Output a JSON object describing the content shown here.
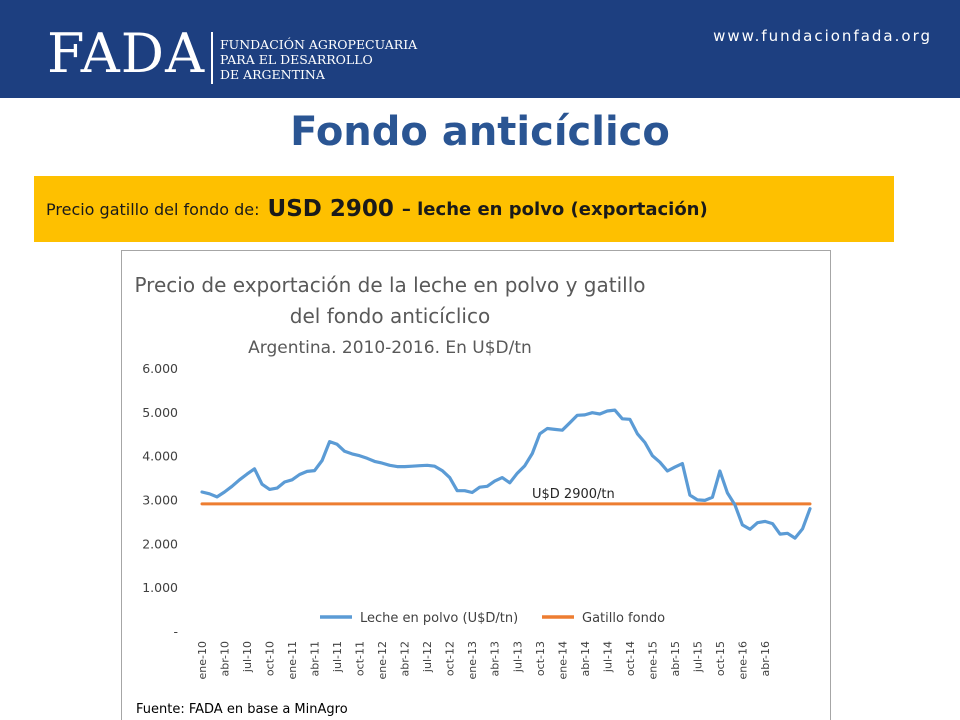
{
  "header": {
    "logo": "FADA",
    "org_lines": [
      "FUNDACIÓN AGROPECUARIA",
      "PARA EL DESARROLLO",
      "DE ARGENTINA"
    ],
    "url": "www.fundacionfada.org"
  },
  "page_title": "Fondo anticíclico",
  "banner": {
    "prefix": "Precio gatillo del fondo de:",
    "price": "USD 2900",
    "suffix": "– leche en polvo (exportación)"
  },
  "colors": {
    "header_bg": "#1d3f80",
    "banner_bg": "#fec000",
    "series_milk": "#5b9bd5",
    "series_trigger": "#ed7d31",
    "title": "#2a5593"
  },
  "chart_data": {
    "type": "line",
    "title_lines": [
      "Precio de exportación de la leche en polvo y gatillo",
      "del fondo anticíclico"
    ],
    "subtitle": "Argentina. 2010-2016. En U$D/tn",
    "ylim": [
      0,
      6000
    ],
    "y_ticks": [
      0,
      1000,
      2000,
      3000,
      4000,
      5000,
      6000
    ],
    "y_tick_labels": [
      "-",
      "1.000",
      "2.000",
      "3.000",
      "4.000",
      "5.000",
      "6.000"
    ],
    "x_tick_labels": [
      "ene-10",
      "abr-10",
      "jul-10",
      "oct-10",
      "ene-11",
      "abr-11",
      "jul-11",
      "oct-11",
      "ene-12",
      "abr-12",
      "jul-12",
      "oct-12",
      "ene-13",
      "abr-13",
      "jul-13",
      "oct-13",
      "ene-14",
      "abr-14",
      "jul-14",
      "oct-14",
      "ene-15",
      "abr-15",
      "jul-15",
      "oct-15",
      "ene-16",
      "abr-16"
    ],
    "grid": false,
    "legend_position": "bottom",
    "annotation": "U$D 2900/tn",
    "source": "Fuente: FADA en base a MinAgro",
    "series": [
      {
        "name": "Leche en polvo (U$D/tn)",
        "color": "#5b9bd5",
        "values": [
          3170,
          3130,
          3060,
          3170,
          3300,
          3450,
          3580,
          3700,
          3350,
          3230,
          3260,
          3400,
          3450,
          3570,
          3640,
          3660,
          3890,
          4320,
          4260,
          4100,
          4040,
          4000,
          3940,
          3870,
          3830,
          3780,
          3750,
          3750,
          3760,
          3770,
          3780,
          3760,
          3660,
          3500,
          3200,
          3200,
          3160,
          3280,
          3300,
          3420,
          3500,
          3380,
          3600,
          3770,
          4050,
          4500,
          4620,
          4600,
          4580,
          4750,
          4920,
          4930,
          4980,
          4950,
          5020,
          5040,
          4840,
          4830,
          4500,
          4300,
          4000,
          3850,
          3650,
          3740,
          3820,
          3100,
          2990,
          2980,
          3050,
          3650,
          3150,
          2880,
          2420,
          2320,
          2470,
          2500,
          2450,
          2210,
          2230,
          2120,
          2330,
          2790
        ]
      },
      {
        "name": "Gatillo fondo",
        "color": "#ed7d31",
        "values": [
          2900,
          2900,
          2900,
          2900,
          2900,
          2900,
          2900,
          2900,
          2900,
          2900,
          2900,
          2900,
          2900,
          2900,
          2900,
          2900,
          2900,
          2900,
          2900,
          2900,
          2900,
          2900,
          2900,
          2900,
          2900,
          2900,
          2900,
          2900,
          2900,
          2900,
          2900,
          2900,
          2900,
          2900,
          2900,
          2900,
          2900,
          2900,
          2900,
          2900,
          2900,
          2900,
          2900,
          2900,
          2900,
          2900,
          2900,
          2900,
          2900,
          2900,
          2900,
          2900,
          2900,
          2900,
          2900,
          2900,
          2900,
          2900,
          2900,
          2900,
          2900,
          2900,
          2900,
          2900,
          2900,
          2900,
          2900,
          2900,
          2900,
          2900,
          2900,
          2900,
          2900,
          2900,
          2900,
          2900,
          2900,
          2900,
          2900,
          2900,
          2900,
          2900
        ]
      }
    ]
  }
}
